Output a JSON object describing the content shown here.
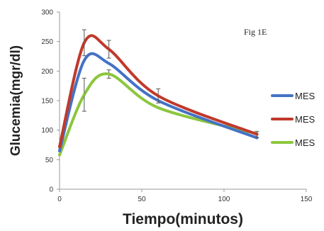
{
  "chart_data": {
    "type": "line",
    "annotation": "Fig 1E",
    "xlabel": "Tiempo(minutos)",
    "ylabel": "Glucemia(mgr/dl)",
    "xlim": [
      0,
      150
    ],
    "ylim": [
      0,
      300
    ],
    "xticks": [
      0,
      50,
      100,
      150
    ],
    "yticks": [
      0,
      50,
      100,
      150,
      200,
      250,
      300
    ],
    "grid": false,
    "legend_position": "right",
    "x": [
      0,
      15,
      30,
      60,
      120
    ],
    "series": [
      {
        "name": "MES",
        "color": "#4472c4",
        "values": [
          65,
          218,
          213,
          150,
          87
        ],
        "errors": [
          0,
          0,
          0,
          0,
          0
        ]
      },
      {
        "name": "MES",
        "color": "#c0392b",
        "values": [
          72,
          248,
          237,
          158,
          93
        ],
        "errors": [
          0,
          22,
          15,
          12,
          5
        ]
      },
      {
        "name": "MES",
        "color": "#8cc63f",
        "values": [
          58,
          160,
          195,
          138,
          94
        ],
        "errors": [
          0,
          28,
          7,
          0,
          0
        ]
      }
    ]
  }
}
